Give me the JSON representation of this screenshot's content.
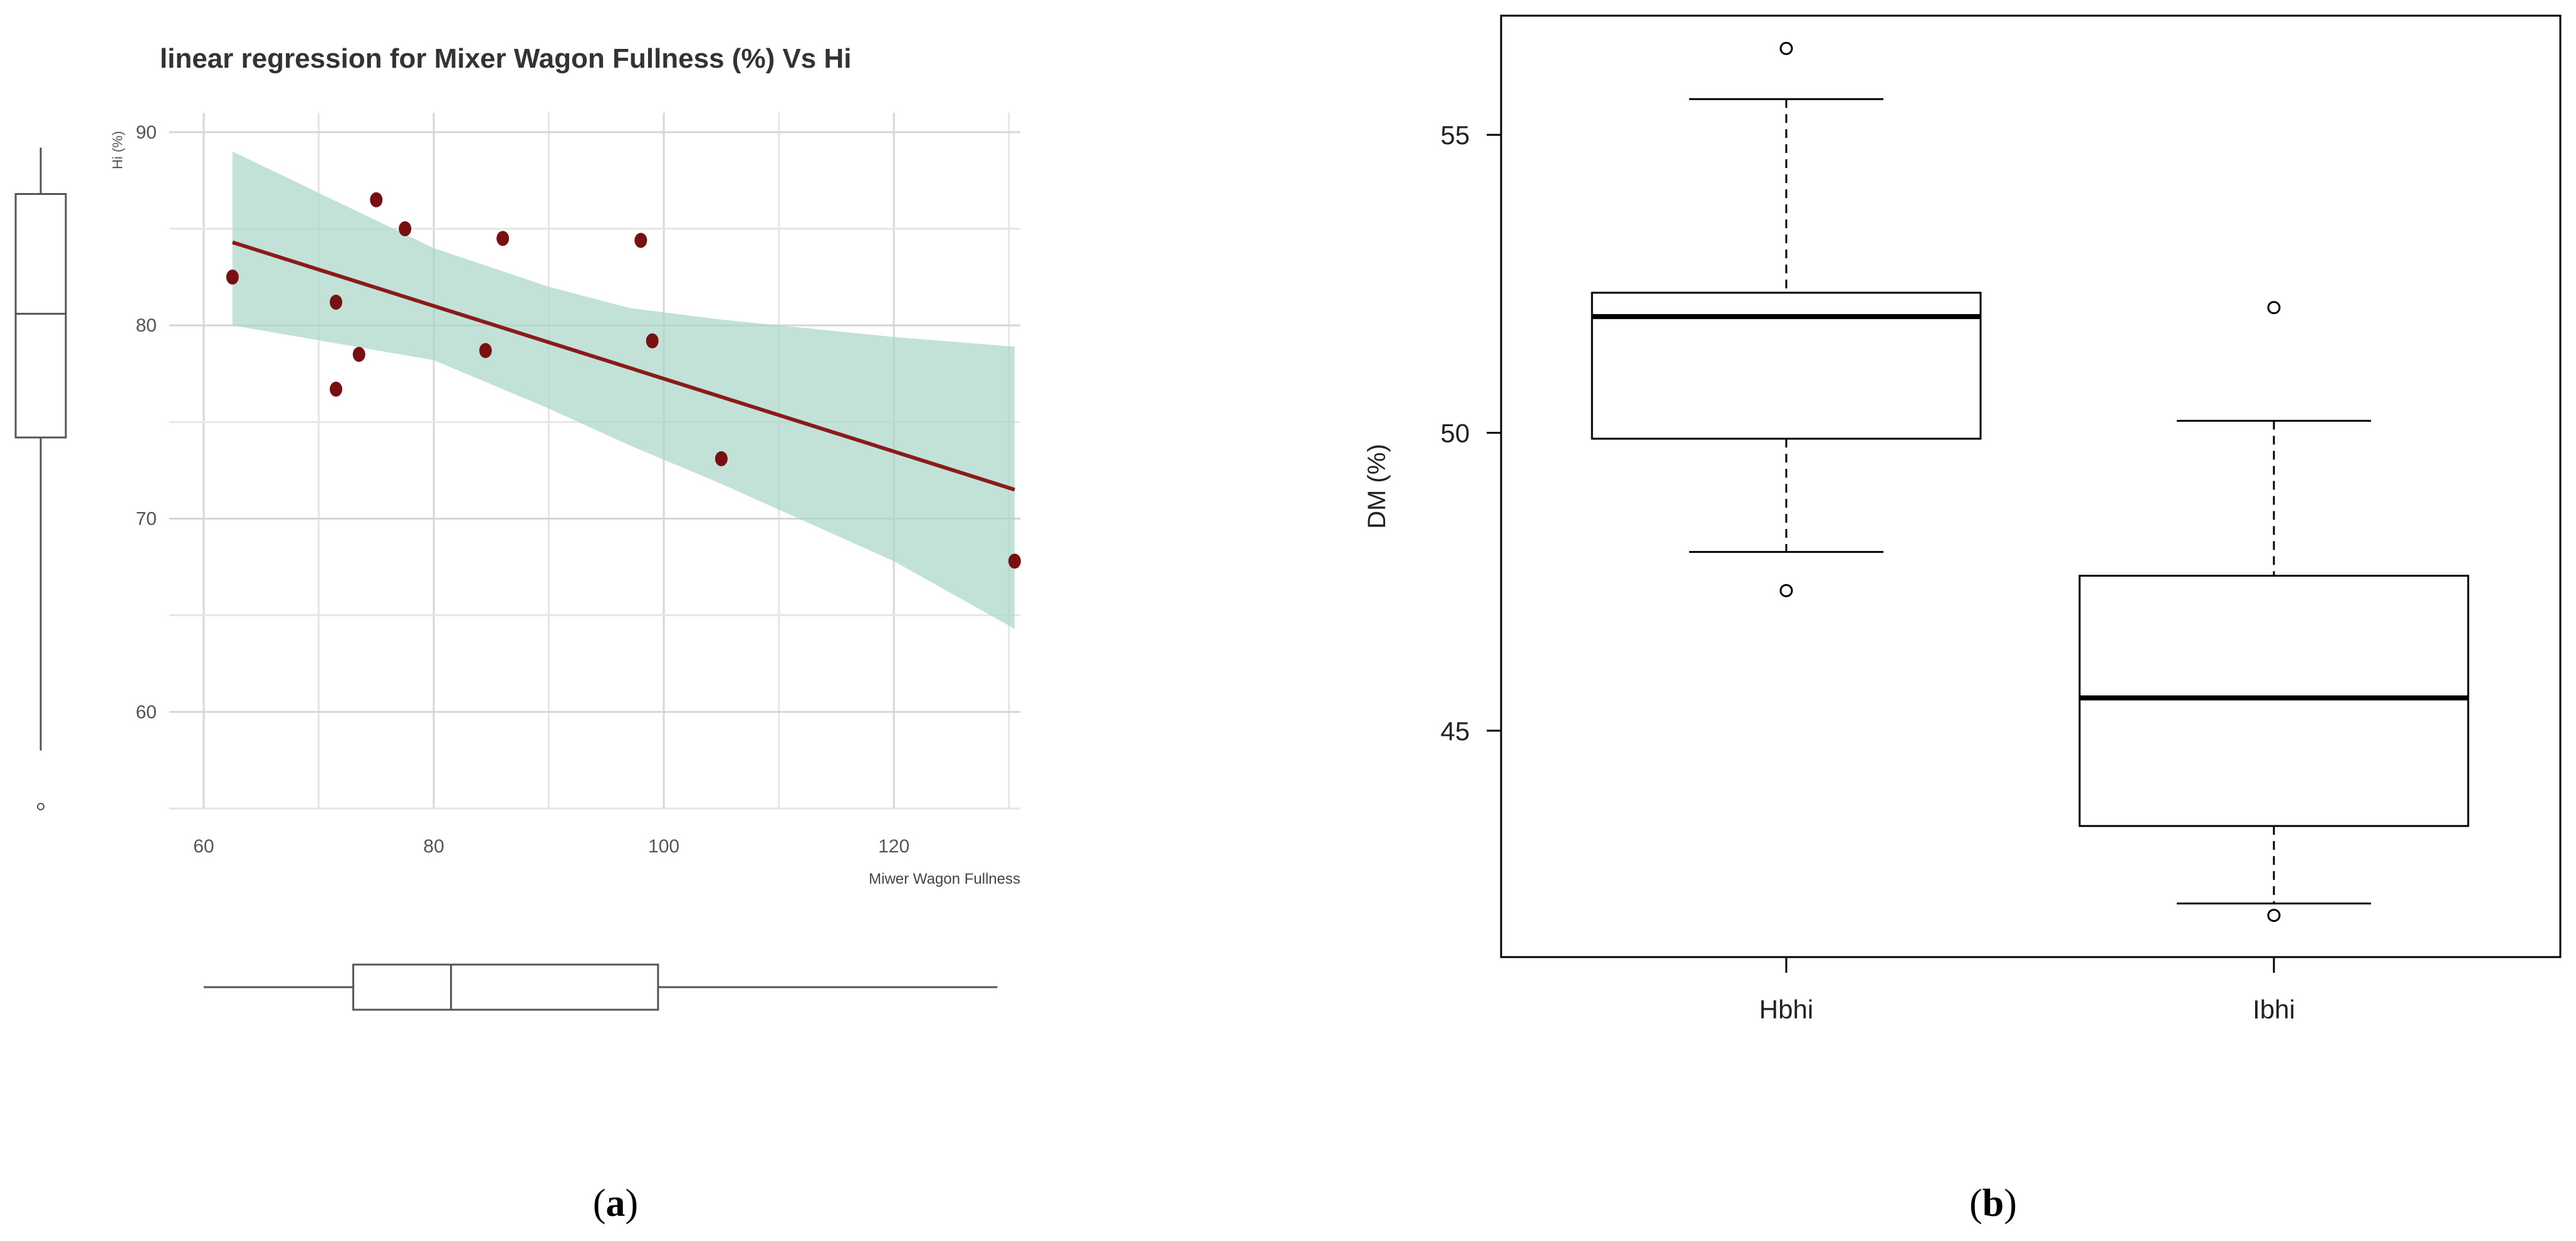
{
  "chart_data": [
    {
      "panel": "a",
      "type": "scatter",
      "title": "linear regression for Mixer Wagon Fullness (%) Vs Hi",
      "xlabel": "Miwer Wagon Fullness",
      "ylabel": "Hi (%)",
      "xlim": [
        57,
        131
      ],
      "ylim": [
        55,
        91
      ],
      "xticks": [
        60,
        80,
        100,
        120
      ],
      "yticks": [
        60,
        70,
        80,
        90
      ],
      "grid": true,
      "colors": {
        "points": "#7a0f12",
        "line": "#8b1a1a",
        "band": "#a8d5c8",
        "box": "#555555"
      },
      "points": [
        {
          "x": 62.5,
          "y": 82.5
        },
        {
          "x": 71.5,
          "y": 76.7
        },
        {
          "x": 71.5,
          "y": 81.2
        },
        {
          "x": 73.5,
          "y": 78.5
        },
        {
          "x": 75.0,
          "y": 86.5
        },
        {
          "x": 77.5,
          "y": 85.0
        },
        {
          "x": 84.5,
          "y": 78.7
        },
        {
          "x": 86.0,
          "y": 84.5
        },
        {
          "x": 98.0,
          "y": 84.4
        },
        {
          "x": 99.0,
          "y": 79.2
        },
        {
          "x": 105.0,
          "y": 73.1
        },
        {
          "x": 130.5,
          "y": 67.8
        }
      ],
      "fit_line": {
        "x": [
          62.5,
          130.5
        ],
        "y": [
          84.3,
          71.5
        ]
      },
      "ci_band": {
        "x": [
          62.5,
          80,
          90,
          97,
          105,
          120,
          130.5
        ],
        "upper": [
          89.0,
          84.0,
          82.0,
          80.9,
          80.3,
          79.4,
          78.9
        ],
        "lower": [
          80.0,
          78.2,
          75.7,
          73.8,
          71.8,
          67.8,
          64.3
        ]
      },
      "marginal_boxplot_y": {
        "lower_whisker": 58.0,
        "q1": 74.2,
        "median": 80.6,
        "q3": 86.8,
        "upper_whisker": 89.2,
        "outliers": [
          55.1
        ]
      },
      "marginal_boxplot_x": {
        "lower_whisker": 60.0,
        "q1": 73.0,
        "median": 81.5,
        "q3": 99.5,
        "upper_whisker": 129.0,
        "outliers": []
      }
    },
    {
      "panel": "b",
      "type": "boxplot",
      "title": "",
      "xlabel": "",
      "ylabel": "DM (%)",
      "ylim": [
        41.2,
        57.0
      ],
      "yticks": [
        45,
        50,
        55
      ],
      "categories": [
        "Hbhi",
        "Ibhi"
      ],
      "boxes": [
        {
          "name": "Hbhi",
          "lower_whisker": 48.0,
          "q1": 49.9,
          "median": 51.95,
          "q3": 52.35,
          "upper_whisker": 55.6,
          "outliers": [
            47.35,
            56.45
          ]
        },
        {
          "name": "Ibhi",
          "lower_whisker": 42.1,
          "q1": 43.4,
          "median": 45.55,
          "q3": 47.6,
          "upper_whisker": 50.2,
          "outliers": [
            41.9,
            52.1
          ]
        }
      ]
    }
  ],
  "captions": {
    "a": "(a)",
    "b": "(b)"
  },
  "a_tick_labels": {
    "x": [
      "60",
      "80",
      "100",
      "120"
    ],
    "y": [
      "60",
      "70",
      "80",
      "90"
    ]
  },
  "b_tick_labels": {
    "y": [
      "45",
      "50",
      "55"
    ]
  }
}
